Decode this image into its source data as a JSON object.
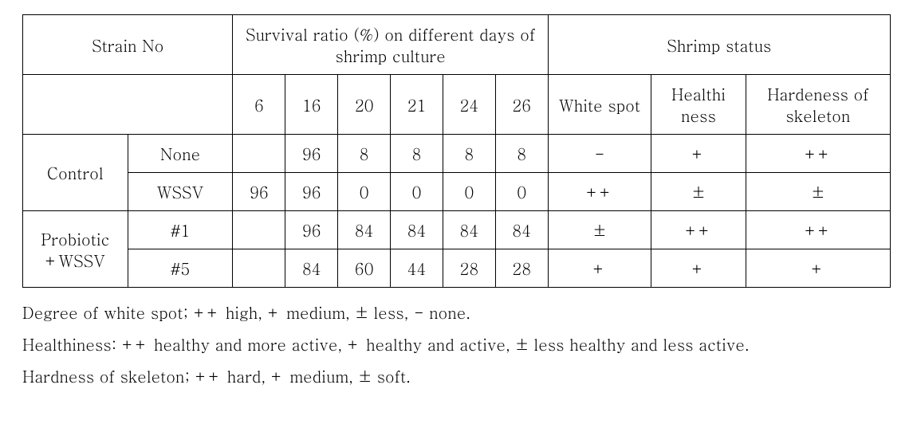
{
  "table": {
    "header": {
      "strain_no": "Strain No",
      "survival_title": "Survival ratio (%) on different days of shrimp culture",
      "status_title": "Shrimp status",
      "days": [
        "6",
        "16",
        "20",
        "21",
        "24",
        "26"
      ],
      "status_cols": {
        "white_spot": "White spot",
        "healthiness": "Healthi\nness",
        "hardness": "Hardeness of skeleton"
      }
    },
    "groups": [
      {
        "label": "Control",
        "rows": [
          {
            "sub": "None",
            "days": [
              "",
              "96",
              "8",
              "8",
              "8",
              "8"
            ],
            "status": [
              "-",
              "+",
              "++"
            ]
          },
          {
            "sub": "WSSV",
            "days": [
              "96",
              "96",
              "0",
              "0",
              "0",
              "0"
            ],
            "status": [
              "++",
              "±",
              "±"
            ]
          }
        ]
      },
      {
        "label": "Probiotic +WSSV",
        "rows": [
          {
            "sub": "#1",
            "days": [
              "",
              "96",
              "84",
              "84",
              "84",
              "84"
            ],
            "status": [
              "±",
              "++",
              "++"
            ]
          },
          {
            "sub": "#5",
            "days": [
              "",
              "84",
              "60",
              "44",
              "28",
              "28"
            ],
            "status": [
              "+",
              "+",
              "+"
            ]
          }
        ]
      }
    ]
  },
  "legend": {
    "line1": "Degree of white spot; ++ high, + medium, ± less, - none.",
    "line2": "Healthiness: ++ healthy and more active, + healthy and active, ± less healthy and less active.",
    "line3": "Hardness of skeleton; ++ hard, + medium, ± soft."
  }
}
